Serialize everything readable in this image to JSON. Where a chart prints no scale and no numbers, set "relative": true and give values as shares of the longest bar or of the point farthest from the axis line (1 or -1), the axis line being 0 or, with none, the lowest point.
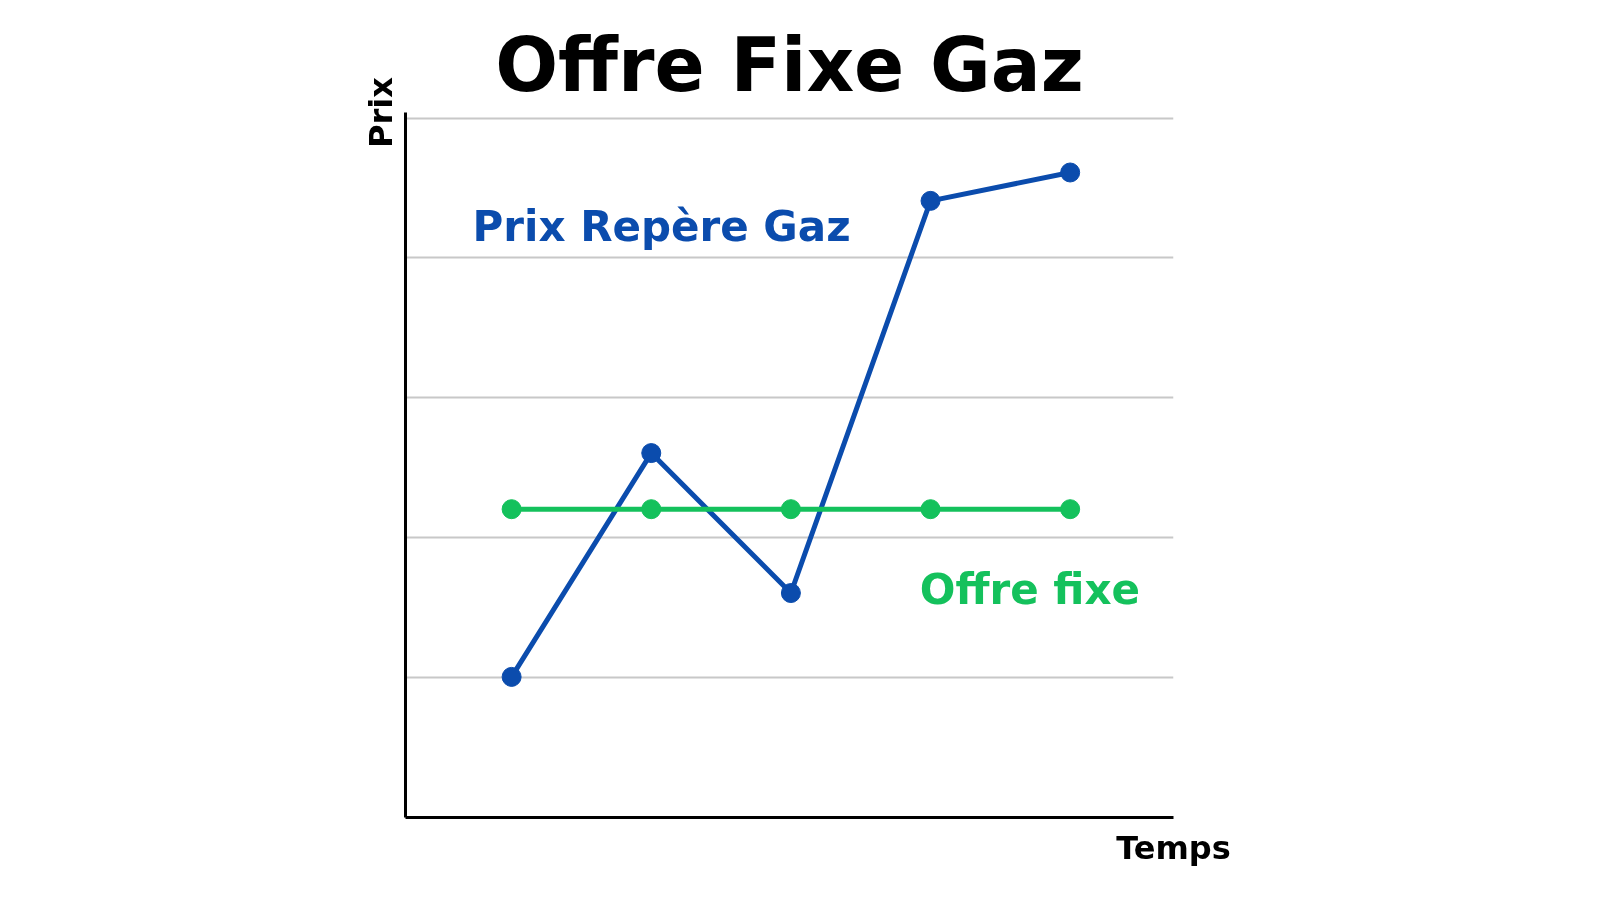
{
  "chart_data": {
    "type": "line",
    "title": "Offre Fixe Gaz",
    "xlabel": "Temps",
    "ylabel": "Prix",
    "relative": true,
    "categories": [
      null,
      null,
      null,
      null,
      null
    ],
    "series": [
      {
        "name": "Prix Repère Gaz",
        "color": "#0b4cad",
        "values": [
          0.218,
          0.565,
          0.348,
          0.956,
          1.0
        ]
      },
      {
        "name": "Offre fixe",
        "color": "#14c15c",
        "values": [
          0.478,
          0.478,
          0.478,
          0.478,
          0.478
        ]
      }
    ],
    "marker": "circle",
    "line_style": "solid",
    "grid": "y"
  }
}
